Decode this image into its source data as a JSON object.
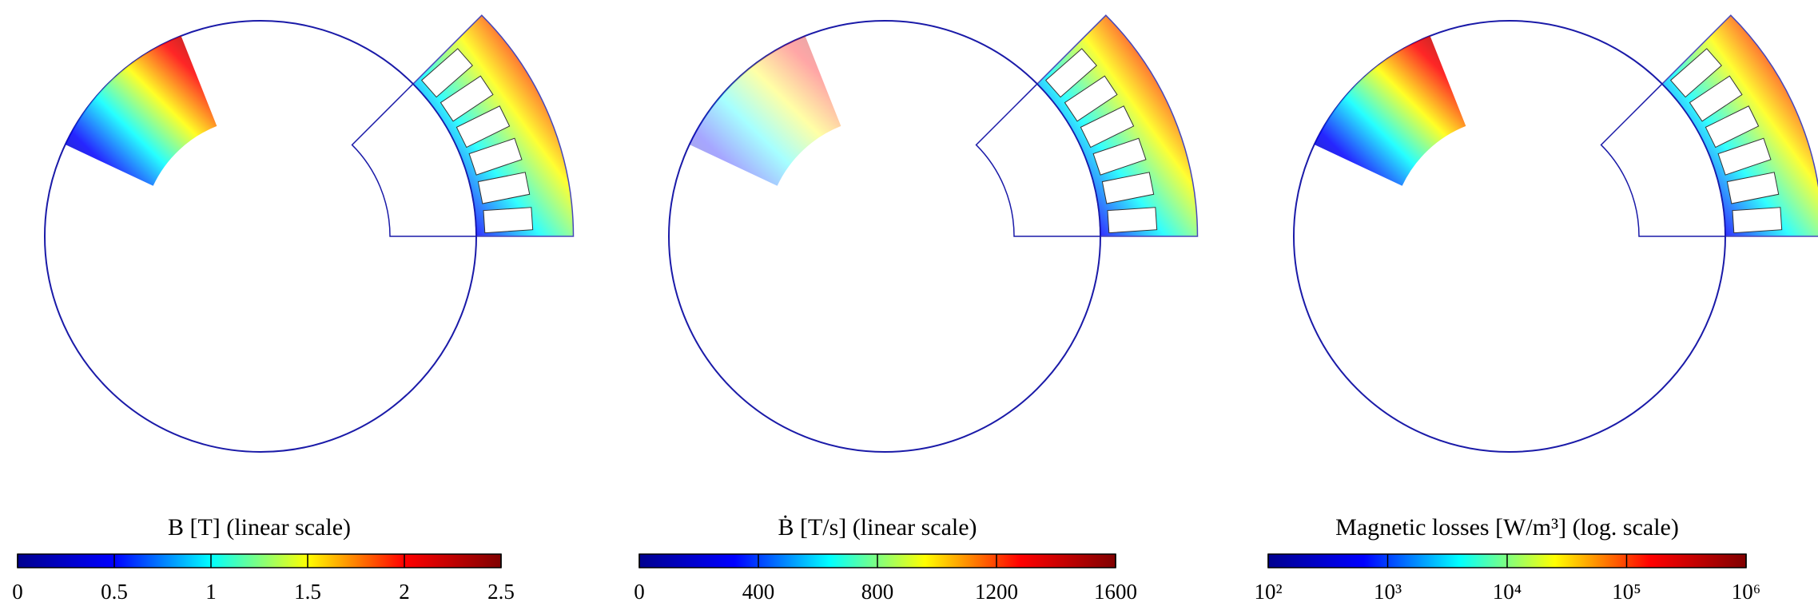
{
  "chart_data": [
    {
      "type": "colorbar",
      "title": "B [T] (linear scale)",
      "clim": [
        0,
        2.5
      ],
      "ticks": [
        0,
        0.5,
        1,
        1.5,
        2,
        2.5
      ],
      "log_scale": false,
      "colors": [
        "#00008f",
        "#0000ff",
        "#00ffff",
        "#ffff00",
        "#ff0000",
        "#800000"
      ]
    },
    {
      "type": "colorbar",
      "title": "Ḃ [T/s] (linear scale)",
      "clim": [
        0,
        1600
      ],
      "ticks": [
        0,
        400,
        800,
        1200,
        1600
      ],
      "log_scale": false,
      "colors": [
        "#00008f",
        "#0000ff",
        "#00ffff",
        "#ffff00",
        "#ff0000",
        "#800000"
      ]
    },
    {
      "type": "colorbar",
      "title": "Magnetic losses [W/m³] (log. scale)",
      "clim": [
        100,
        1000000
      ],
      "ticks": [
        {
          "value": 100,
          "label": "10²"
        },
        {
          "value": 1000,
          "label": "10³"
        },
        {
          "value": 10000,
          "label": "10⁴"
        },
        {
          "value": 100000,
          "label": "10⁵"
        },
        {
          "value": 1000000,
          "label": "10⁶"
        }
      ],
      "log_scale": true,
      "colors": [
        "#00008f",
        "#0000ff",
        "#00ffff",
        "#ffff00",
        "#ff0000",
        "#800000"
      ]
    }
  ]
}
